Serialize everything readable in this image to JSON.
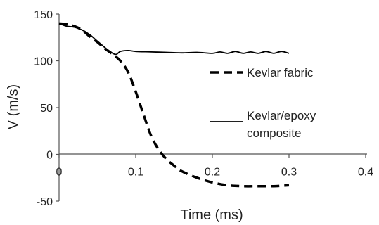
{
  "chart_data": {
    "type": "line",
    "xlabel": "Time (ms)",
    "ylabel": "V (m/s)",
    "xlim": [
      0,
      0.4
    ],
    "ylim": [
      -50,
      150
    ],
    "xticks": [
      "0",
      "0.1",
      "0.2",
      "0.3",
      "0.4"
    ],
    "yticks": [
      "150",
      "100",
      "50",
      "0",
      "-50"
    ],
    "xtick_values": [
      0,
      0.1,
      0.2,
      0.3,
      0.4
    ],
    "ytick_values": [
      150,
      100,
      50,
      0,
      -50
    ],
    "grid": false,
    "legend_position": "right",
    "series": [
      {
        "name": "Kevlar fabric",
        "style": "dashed",
        "color": "#000000",
        "x": [
          0,
          0.01,
          0.02,
          0.03,
          0.04,
          0.05,
          0.06,
          0.07,
          0.08,
          0.09,
          0.1,
          0.11,
          0.12,
          0.13,
          0.14,
          0.15,
          0.16,
          0.18,
          0.2,
          0.22,
          0.24,
          0.26,
          0.28,
          0.3
        ],
        "y": [
          140,
          139,
          137,
          133,
          126,
          120,
          113,
          107,
          100,
          88,
          67,
          43,
          20,
          5,
          -5,
          -12,
          -18,
          -25,
          -30,
          -33,
          -34,
          -34,
          -34,
          -33
        ]
      },
      {
        "name": "Kevlar/epoxy composite",
        "legend_lines": [
          "Kevlar/epoxy",
          "composite"
        ],
        "style": "solid",
        "color": "#000000",
        "x": [
          0,
          0.01,
          0.02,
          0.03,
          0.04,
          0.05,
          0.06,
          0.07,
          0.075,
          0.08,
          0.09,
          0.1,
          0.12,
          0.14,
          0.16,
          0.18,
          0.2,
          0.21,
          0.22,
          0.23,
          0.24,
          0.25,
          0.26,
          0.27,
          0.28,
          0.29,
          0.3
        ],
        "y": [
          140,
          137,
          136,
          133,
          128,
          121,
          114,
          108,
          107,
          110,
          111,
          110,
          109.5,
          109,
          108.5,
          109,
          108,
          109.5,
          108,
          110,
          108,
          109.5,
          108,
          110,
          108,
          110,
          108
        ]
      }
    ]
  }
}
